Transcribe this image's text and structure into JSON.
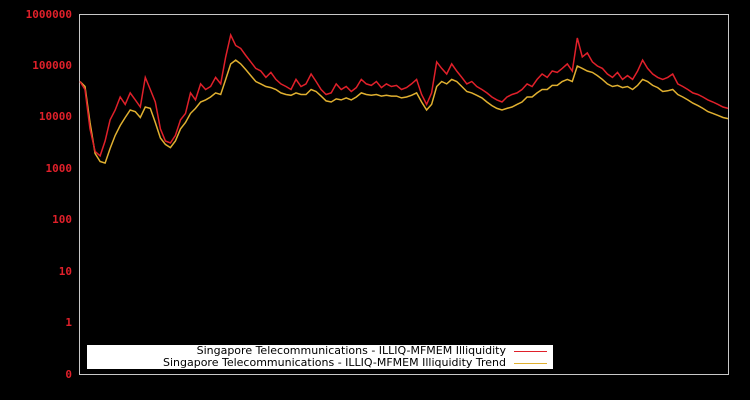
{
  "chart_data": {
    "type": "line",
    "title": "",
    "xlabel": "",
    "ylabel": "",
    "yscale": "log",
    "ylim": [
      0,
      1000000
    ],
    "y_ticks": [
      "1000000",
      "100000",
      "10000",
      "1000",
      "100",
      "10",
      "1",
      "0"
    ],
    "x_ticks": [],
    "grid": false,
    "legend_position": "lower-left inside plot",
    "background": "#000000",
    "frame_color": "#c8c8c8",
    "tick_label_color": "#e0202a",
    "x_index_count": 130,
    "series": [
      {
        "name": "Singapore Telecommunications - ILLIQ-MFMEM Illiquidity",
        "color": "#e0202a",
        "values": [
          50000,
          35000,
          6000,
          2200,
          1800,
          3500,
          9000,
          14000,
          25000,
          18000,
          30000,
          22000,
          16000,
          60000,
          35000,
          20000,
          6000,
          3500,
          3200,
          4500,
          9000,
          12000,
          30000,
          22000,
          45000,
          35000,
          40000,
          60000,
          45000,
          150000,
          400000,
          250000,
          220000,
          160000,
          120000,
          90000,
          80000,
          60000,
          75000,
          55000,
          45000,
          40000,
          35000,
          55000,
          40000,
          45000,
          70000,
          50000,
          35000,
          28000,
          30000,
          45000,
          35000,
          40000,
          32000,
          38000,
          55000,
          45000,
          42000,
          50000,
          38000,
          45000,
          40000,
          42000,
          35000,
          38000,
          45000,
          55000,
          28000,
          18000,
          30000,
          120000,
          90000,
          70000,
          110000,
          80000,
          60000,
          45000,
          50000,
          40000,
          35000,
          30000,
          25000,
          22000,
          20000,
          25000,
          28000,
          30000,
          35000,
          45000,
          40000,
          55000,
          70000,
          60000,
          80000,
          75000,
          90000,
          110000,
          80000,
          350000,
          150000,
          180000,
          120000,
          100000,
          90000,
          70000,
          60000,
          75000,
          55000,
          65000,
          55000,
          80000,
          130000,
          90000,
          70000,
          60000,
          55000,
          60000,
          70000,
          45000,
          40000,
          35000,
          30000,
          28000,
          25000,
          22000,
          20000,
          18000,
          16000,
          15000
        ]
      },
      {
        "name": "Singapore Telecommunications - ILLIQ-MFMEM Illiquidity Trend",
        "color": "#e0b030",
        "values": [
          50000,
          40000,
          8000,
          2000,
          1400,
          1300,
          2500,
          4500,
          7000,
          10000,
          14000,
          13000,
          10000,
          16000,
          15000,
          8000,
          4000,
          3000,
          2600,
          3500,
          6000,
          8000,
          12000,
          15000,
          20000,
          22000,
          25000,
          30000,
          28000,
          55000,
          110000,
          130000,
          110000,
          85000,
          65000,
          50000,
          45000,
          40000,
          38000,
          35000,
          30000,
          28000,
          27000,
          30000,
          28000,
          28000,
          35000,
          32000,
          26000,
          21000,
          20000,
          23000,
          22000,
          24000,
          22000,
          25000,
          30000,
          28000,
          27000,
          28000,
          26000,
          27000,
          26000,
          26000,
          24000,
          25000,
          27000,
          30000,
          20000,
          14000,
          18000,
          40000,
          50000,
          45000,
          55000,
          50000,
          40000,
          32000,
          30000,
          27000,
          24000,
          20000,
          17000,
          15000,
          14000,
          15000,
          16000,
          18000,
          20000,
          25000,
          25000,
          30000,
          35000,
          35000,
          42000,
          42000,
          50000,
          55000,
          50000,
          100000,
          90000,
          80000,
          75000,
          65000,
          55000,
          45000,
          40000,
          42000,
          38000,
          40000,
          35000,
          42000,
          55000,
          50000,
          42000,
          38000,
          32000,
          33000,
          35000,
          28000,
          25000,
          22000,
          19000,
          17000,
          15000,
          13000,
          12000,
          11000,
          10000,
          9500
        ]
      }
    ]
  },
  "legend": {
    "items": [
      {
        "label": "Singapore Telecommunications - ILLIQ-MFMEM Illiquidity",
        "color": "#e0202a"
      },
      {
        "label": "Singapore Telecommunications - ILLIQ-MFMEM Illiquidity Trend",
        "color": "#e0b030"
      }
    ]
  }
}
